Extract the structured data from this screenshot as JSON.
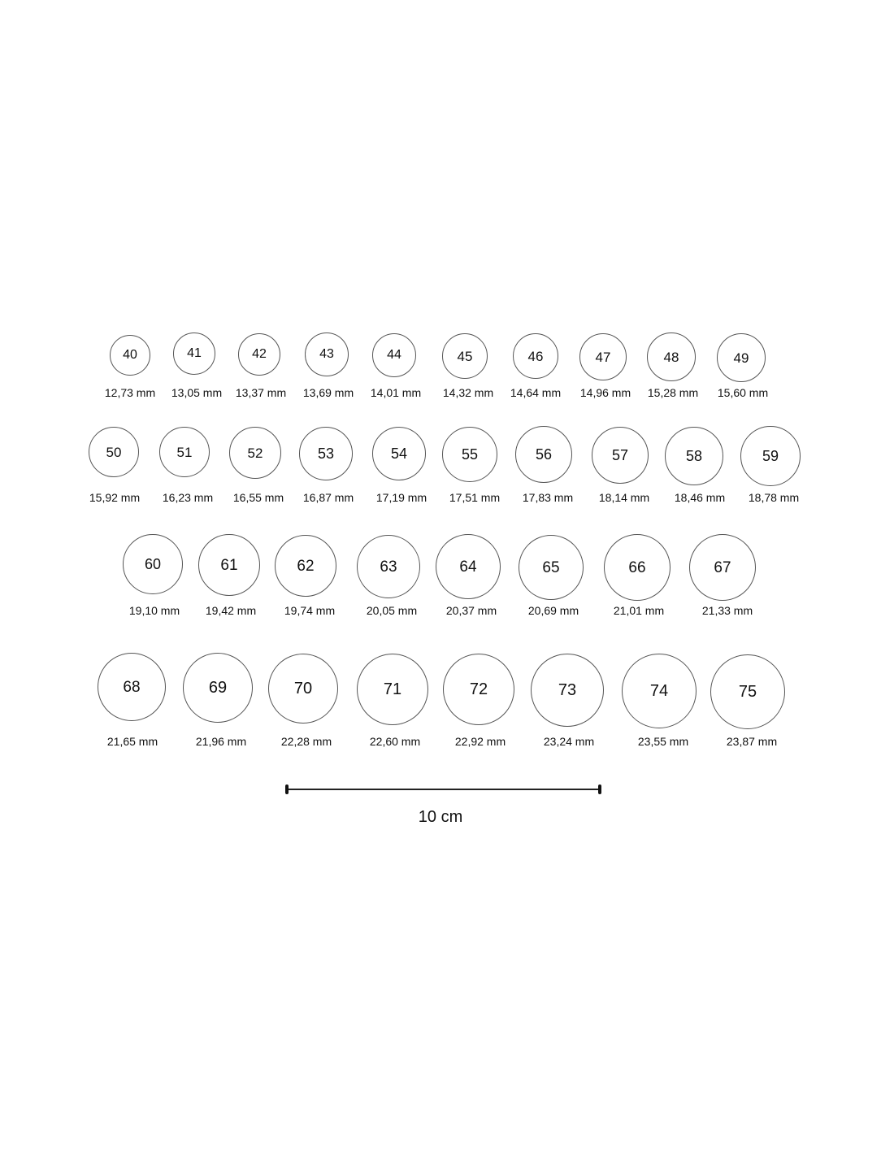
{
  "rings": [
    {
      "size": "40",
      "diameter": "12,73 mm"
    },
    {
      "size": "41",
      "diameter": "13,05 mm"
    },
    {
      "size": "42",
      "diameter": "13,37 mm"
    },
    {
      "size": "43",
      "diameter": "13,69 mm"
    },
    {
      "size": "44",
      "diameter": "14,01 mm"
    },
    {
      "size": "45",
      "diameter": "14,32 mm"
    },
    {
      "size": "46",
      "diameter": "14,64 mm"
    },
    {
      "size": "47",
      "diameter": "14,96 mm"
    },
    {
      "size": "48",
      "diameter": "15,28 mm"
    },
    {
      "size": "49",
      "diameter": "15,60 mm"
    },
    {
      "size": "50",
      "diameter": "15,92 mm"
    },
    {
      "size": "51",
      "diameter": "16,23 mm"
    },
    {
      "size": "52",
      "diameter": "16,55 mm"
    },
    {
      "size": "53",
      "diameter": "16,87 mm"
    },
    {
      "size": "54",
      "diameter": "17,19 mm"
    },
    {
      "size": "55",
      "diameter": "17,51 mm"
    },
    {
      "size": "56",
      "diameter": "17,83 mm"
    },
    {
      "size": "57",
      "diameter": "18,14 mm"
    },
    {
      "size": "58",
      "diameter": "18,46 mm"
    },
    {
      "size": "59",
      "diameter": "18,78 mm"
    },
    {
      "size": "60",
      "diameter": "19,10 mm"
    },
    {
      "size": "61",
      "diameter": "19,42 mm"
    },
    {
      "size": "62",
      "diameter": "19,74 mm"
    },
    {
      "size": "63",
      "diameter": "20,05 mm"
    },
    {
      "size": "64",
      "diameter": "20,37 mm"
    },
    {
      "size": "65",
      "diameter": "20,69 mm"
    },
    {
      "size": "66",
      "diameter": "21,01 mm"
    },
    {
      "size": "67",
      "diameter": "21,33 mm"
    },
    {
      "size": "68",
      "diameter": "21,65 mm"
    },
    {
      "size": "69",
      "diameter": "21,96 mm"
    },
    {
      "size": "70",
      "diameter": "22,28 mm"
    },
    {
      "size": "71",
      "diameter": "22,60 mm"
    },
    {
      "size": "72",
      "diameter": "22,92 mm"
    },
    {
      "size": "73",
      "diameter": "23,24 mm"
    },
    {
      "size": "74",
      "diameter": "23,55 mm"
    },
    {
      "size": "75",
      "diameter": "23,87 mm"
    }
  ],
  "scale_bar": {
    "label": "10 cm"
  }
}
